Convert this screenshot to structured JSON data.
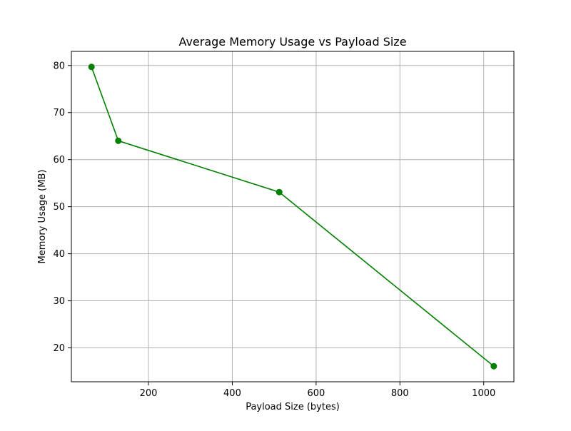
{
  "chart_data": {
    "type": "line",
    "title": "Average Memory Usage vs Payload Size",
    "xlabel": "Payload Size (bytes)",
    "ylabel": "Memory Usage (MB)",
    "xlim": [
      16,
      1072
    ],
    "ylim": [
      12.8,
      83.0
    ],
    "xticks": [
      200,
      400,
      600,
      800,
      1000
    ],
    "yticks": [
      20,
      30,
      40,
      50,
      60,
      70,
      80
    ],
    "grid": true,
    "series": [
      {
        "color": "#008000",
        "marker": "circle",
        "x": [
          64,
          128,
          512,
          1024
        ],
        "y": [
          79.7,
          64.0,
          53.1,
          16.1
        ]
      }
    ]
  }
}
